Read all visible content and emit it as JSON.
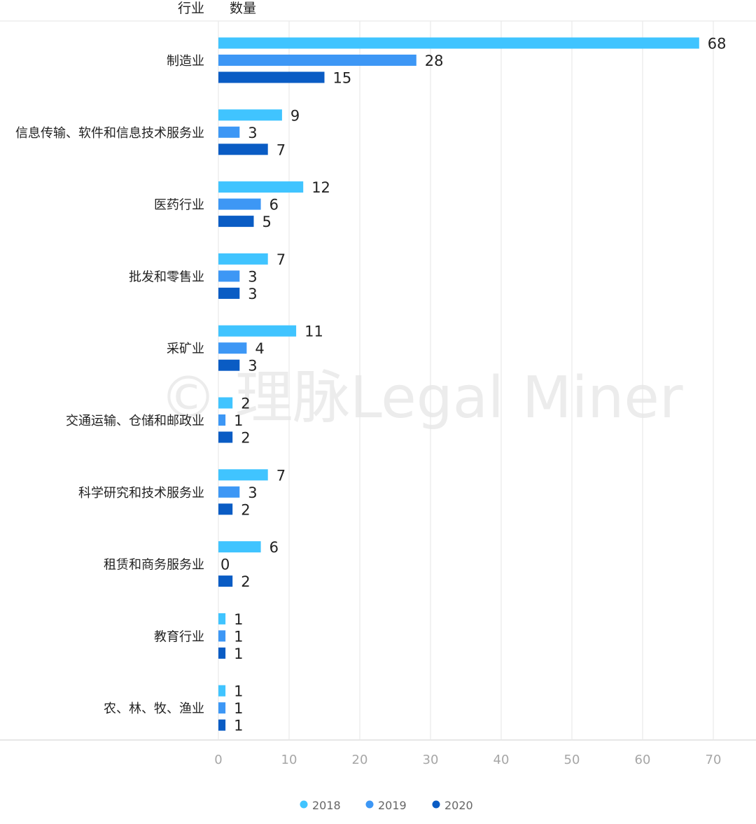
{
  "header": {
    "category_label": "行业",
    "value_label": "数量"
  },
  "watermark": "© 理脉Legal Miner",
  "colors": {
    "2018": "#40c4ff",
    "2019": "#3d97f5",
    "2020": "#0a5cc4",
    "grid": "#e6e6e6",
    "axis": "#cfcfcf"
  },
  "chart_data": {
    "type": "bar",
    "orientation": "horizontal",
    "categories": [
      "制造业",
      "信息传输、软件和信息技术服务业",
      "医药行业",
      "批发和零售业",
      "采矿业",
      "交通运输、仓储和邮政业",
      "科学研究和技术服务业",
      "租赁和商务服务业",
      "教育行业",
      "农、林、牧、渔业"
    ],
    "series": [
      {
        "name": "2018",
        "values": [
          68,
          9,
          12,
          7,
          11,
          2,
          7,
          6,
          1,
          1
        ]
      },
      {
        "name": "2019",
        "values": [
          28,
          3,
          6,
          3,
          4,
          1,
          3,
          0,
          1,
          1
        ]
      },
      {
        "name": "2020",
        "values": [
          15,
          7,
          5,
          3,
          3,
          2,
          2,
          2,
          1,
          1
        ]
      }
    ],
    "xlim": [
      0,
      70
    ],
    "xticks": [
      "0",
      "10",
      "20",
      "30",
      "40",
      "50",
      "60",
      "70"
    ],
    "grid": true,
    "legend": "bottom",
    "data_labels": true
  }
}
